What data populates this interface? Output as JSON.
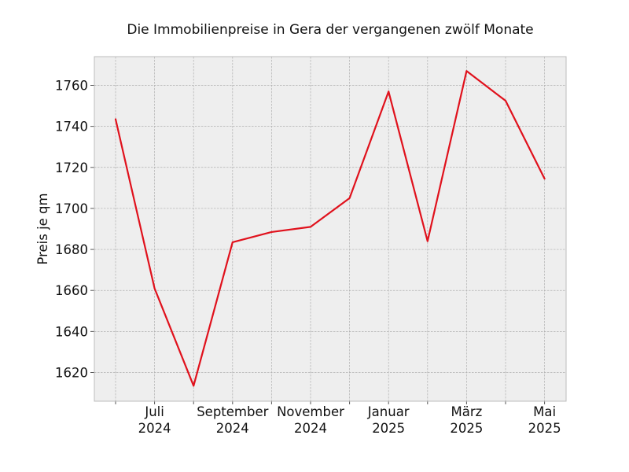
{
  "chart_data": {
    "type": "line",
    "title": "Die Immobilienpreise in Gera der vergangenen zwölf Monate",
    "xlabel": "",
    "ylabel": "Preis je qm",
    "ylim": [
      1606,
      1774
    ],
    "yticks": [
      1620,
      1640,
      1660,
      1680,
      1700,
      1720,
      1740,
      1760
    ],
    "x": [
      "2024-06",
      "2024-07",
      "2024-08",
      "2024-09",
      "2024-10",
      "2024-11",
      "2024-12",
      "2025-01",
      "2025-02",
      "2025-03",
      "2025-04",
      "2025-05"
    ],
    "xtick_labels": [
      {
        "x": "2024-07",
        "line1": "Juli",
        "line2": "2024"
      },
      {
        "x": "2024-09",
        "line1": "September",
        "line2": "2024"
      },
      {
        "x": "2024-11",
        "line1": "November",
        "line2": "2024"
      },
      {
        "x": "2025-01",
        "line1": "Januar",
        "line2": "2025"
      },
      {
        "x": "2025-03",
        "line1": "März",
        "line2": "2025"
      },
      {
        "x": "2025-05",
        "line1": "Mai",
        "line2": "2025"
      }
    ],
    "series": [
      {
        "values": [
          1743.5,
          1661.0,
          1613.5,
          1683.5,
          1688.5,
          1691.0,
          1705.0,
          1757.0,
          1684.0,
          1767.0,
          1752.5,
          1714.5
        ],
        "color": "#e0111c"
      }
    ],
    "grid": true,
    "legend": "none",
    "colors": {
      "plot_background": "#eeeeee",
      "grid": "#b0b0b0",
      "frame": "#bcbcbc"
    }
  }
}
